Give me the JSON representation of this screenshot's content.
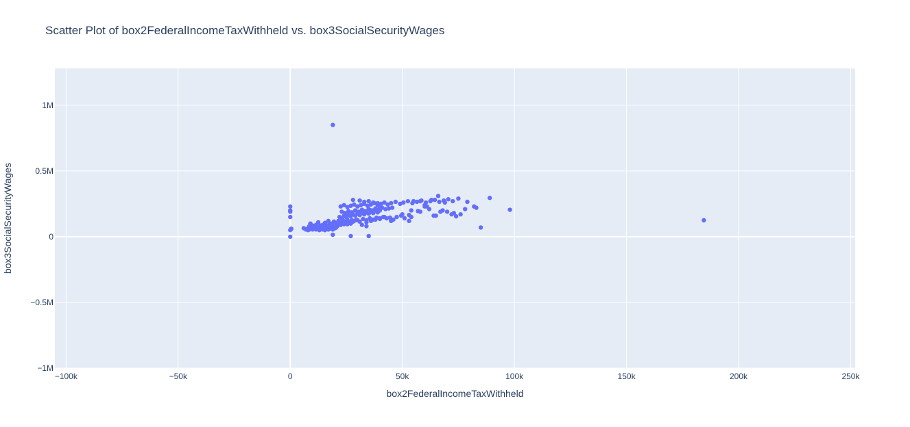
{
  "chart_data": {
    "type": "scatter",
    "title": "Scatter Plot of box2FederalIncomeTaxWithheld vs. box3SocialSecurityWages",
    "xlabel": "box2FederalIncomeTaxWithheld",
    "ylabel": "box3SocialSecurityWages",
    "xlim": [
      -105000,
      252000
    ],
    "ylim": [
      -1000000,
      1280000
    ],
    "x_ticks": [
      -100000,
      -50000,
      0,
      50000,
      100000,
      150000,
      200000,
      250000
    ],
    "x_tick_labels": [
      "−100k",
      "−50k",
      "0",
      "50k",
      "100k",
      "150k",
      "200k",
      "250k"
    ],
    "y_ticks": [
      -1000000,
      -500000,
      0,
      500000,
      1000000
    ],
    "y_tick_labels": [
      "−1M",
      "−0.5M",
      "0",
      "0.5M",
      "1M"
    ],
    "grid": true,
    "legend": "none",
    "colors": {
      "marker": "#636efa",
      "plot_bg": "#e5ecf6",
      "grid": "#ffffff",
      "text": "#2a3f5f"
    },
    "series": [
      {
        "x": [
          0,
          0,
          0,
          0,
          0,
          0,
          400,
          500,
          6000,
          7000,
          7500,
          8000,
          8500,
          9000,
          9500,
          10000,
          10500,
          11000,
          11500,
          12000,
          12500,
          13000,
          13500,
          14000,
          14500,
          15000,
          15500,
          16000,
          16500,
          17000,
          17500,
          18000,
          18500,
          19000,
          19500,
          20000,
          20500,
          21000,
          8500,
          10000,
          11500,
          12500,
          13500,
          14500,
          15500,
          16500,
          17500,
          18500,
          19500,
          21000,
          22500,
          24000,
          25500,
          27000,
          9000,
          12500,
          15500,
          17000,
          18500,
          19500,
          20500,
          21500,
          22500,
          23500,
          24500,
          25500,
          26500,
          27500,
          28500,
          29500,
          31000,
          32500,
          34000,
          35500,
          37000,
          38500,
          40000,
          41500,
          43000,
          44500,
          46000,
          47500,
          49500,
          51000,
          53000,
          22000,
          23000,
          24000,
          25000,
          26000,
          27000,
          28000,
          29000,
          30000,
          31000,
          32000,
          33000,
          34000,
          35000,
          36000,
          37000,
          38000,
          39000,
          40000,
          23000,
          24500,
          26000,
          27500,
          29000,
          30500,
          32000,
          33500,
          35000,
          36500,
          38000,
          39500,
          41000,
          42500,
          44000,
          45500,
          22500,
          24000,
          25500,
          27000,
          28500,
          30000,
          31500,
          33000,
          34500,
          36000,
          37500,
          39000,
          40500,
          42000,
          43500,
          45000,
          47000,
          49000,
          50500,
          52500,
          54500,
          56500,
          58500,
          60500,
          62500,
          64500,
          66500,
          68500,
          70500,
          72500,
          24000,
          26000,
          28000,
          30000,
          32000,
          34000,
          36000,
          38000,
          40000,
          42000,
          28000,
          31000,
          33000,
          35000,
          37000,
          39000,
          34000,
          36000,
          38000,
          40000,
          50000,
          54000,
          57000,
          60000,
          62000,
          65000,
          68000,
          73000,
          76000,
          78000,
          82000,
          45000,
          54000,
          58000,
          60000,
          63000,
          66000,
          70000,
          75000,
          79000,
          83000,
          89000,
          53000,
          55000,
          58000,
          61000,
          64000,
          67000,
          69000,
          72000,
          74000,
          19000,
          27000,
          35000,
          19000,
          85000,
          98000,
          184500
        ],
        "y": [
          230000,
          200000,
          190000,
          150000,
          50000,
          0,
          60000,
          60000,
          65000,
          55000,
          60000,
          50000,
          55000,
          60000,
          65000,
          55000,
          60000,
          70000,
          55000,
          60000,
          65000,
          50000,
          70000,
          60000,
          55000,
          65000,
          50000,
          70000,
          60000,
          55000,
          65000,
          70000,
          60000,
          55000,
          75000,
          65000,
          70000,
          80000,
          80000,
          85000,
          90000,
          75000,
          85000,
          90000,
          80000,
          85000,
          95000,
          90000,
          80000,
          95000,
          90000,
          100000,
          95000,
          100000,
          100000,
          110000,
          105000,
          120000,
          100000,
          115000,
          105000,
          120000,
          110000,
          125000,
          115000,
          130000,
          110000,
          125000,
          120000,
          130000,
          115000,
          135000,
          125000,
          140000,
          130000,
          145000,
          135000,
          150000,
          140000,
          145000,
          130000,
          150000,
          160000,
          140000,
          165000,
          150000,
          140000,
          160000,
          150000,
          165000,
          155000,
          170000,
          160000,
          175000,
          165000,
          180000,
          170000,
          185000,
          175000,
          190000,
          180000,
          195000,
          185000,
          200000,
          190000,
          180000,
          195000,
          185000,
          200000,
          190000,
          205000,
          195000,
          210000,
          200000,
          215000,
          205000,
          220000,
          210000,
          215000,
          220000,
          230000,
          240000,
          225000,
          235000,
          245000,
          230000,
          240000,
          250000,
          235000,
          245000,
          255000,
          240000,
          250000,
          260000,
          245000,
          255000,
          265000,
          250000,
          260000,
          270000,
          255000,
          265000,
          275000,
          260000,
          270000,
          280000,
          265000,
          275000,
          285000,
          270000,
          95000,
          105000,
          115000,
          125000,
          90000,
          110000,
          120000,
          130000,
          140000,
          150000,
          280000,
          275000,
          265000,
          270000,
          260000,
          255000,
          80000,
          200000,
          210000,
          220000,
          170000,
          200000,
          195000,
          230000,
          210000,
          160000,
          200000,
          180000,
          170000,
          210000,
          230000,
          120000,
          150000,
          190000,
          240000,
          280000,
          310000,
          190000,
          290000,
          265000,
          220000,
          295000,
          120000,
          270000,
          270000,
          230000,
          160000,
          190000,
          260000,
          170000,
          155000,
          15000,
          5000,
          5000,
          850000,
          70000,
          205000,
          125000
        ]
      }
    ]
  }
}
